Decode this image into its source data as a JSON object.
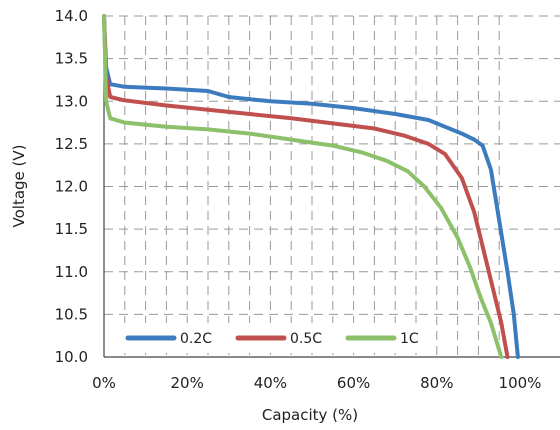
{
  "chart_data": {
    "type": "line",
    "xlabel": "Capacity (%)",
    "ylabel": "Voltage (V)",
    "xlim": [
      0,
      100
    ],
    "ylim": [
      10.0,
      14.0
    ],
    "x_ticks": [
      "0%",
      "20%",
      "40%",
      "60%",
      "80%",
      "100%"
    ],
    "x_tick_values": [
      0,
      20,
      40,
      60,
      80,
      100
    ],
    "y_ticks": [
      "10.0",
      "10.5",
      "11.0",
      "11.5",
      "12.0",
      "12.5",
      "13.0",
      "13.5",
      "14.0"
    ],
    "y_tick_values": [
      10.0,
      10.5,
      11.0,
      11.5,
      12.0,
      12.5,
      13.0,
      13.5,
      14.0
    ],
    "grid": true,
    "legend_position": "bottom-left",
    "series": [
      {
        "name": "0.2C",
        "color": "#3d7bbf",
        "points": [
          [
            0,
            14.0
          ],
          [
            0.5,
            13.4
          ],
          [
            1.5,
            13.2
          ],
          [
            5,
            13.17
          ],
          [
            15,
            13.15
          ],
          [
            25,
            13.12
          ],
          [
            30,
            13.05
          ],
          [
            40,
            13.0
          ],
          [
            50,
            12.97
          ],
          [
            60,
            12.92
          ],
          [
            70,
            12.85
          ],
          [
            78,
            12.78
          ],
          [
            82,
            12.7
          ],
          [
            86,
            12.62
          ],
          [
            89,
            12.55
          ],
          [
            91,
            12.48
          ],
          [
            93,
            12.2
          ],
          [
            95,
            11.6
          ],
          [
            97,
            11.0
          ],
          [
            98.5,
            10.5
          ],
          [
            99.5,
            10.0
          ]
        ]
      },
      {
        "name": "0.5C",
        "color": "#c0504d",
        "points": [
          [
            0,
            14.0
          ],
          [
            0.5,
            13.3
          ],
          [
            1.5,
            13.05
          ],
          [
            5,
            13.01
          ],
          [
            15,
            12.95
          ],
          [
            25,
            12.9
          ],
          [
            35,
            12.85
          ],
          [
            45,
            12.8
          ],
          [
            55,
            12.74
          ],
          [
            65,
            12.68
          ],
          [
            72,
            12.6
          ],
          [
            78,
            12.5
          ],
          [
            82,
            12.38
          ],
          [
            86,
            12.1
          ],
          [
            89,
            11.7
          ],
          [
            91,
            11.3
          ],
          [
            93.5,
            10.8
          ],
          [
            95.5,
            10.4
          ],
          [
            97,
            10.0
          ]
        ]
      },
      {
        "name": "1C",
        "color": "#8dc06a",
        "points": [
          [
            0,
            14.0
          ],
          [
            0.5,
            13.0
          ],
          [
            1.5,
            12.8
          ],
          [
            5,
            12.75
          ],
          [
            15,
            12.7
          ],
          [
            25,
            12.67
          ],
          [
            35,
            12.62
          ],
          [
            45,
            12.55
          ],
          [
            55,
            12.48
          ],
          [
            62,
            12.4
          ],
          [
            68,
            12.3
          ],
          [
            73,
            12.18
          ],
          [
            77,
            12.0
          ],
          [
            81,
            11.75
          ],
          [
            85,
            11.4
          ],
          [
            88,
            11.05
          ],
          [
            90.5,
            10.7
          ],
          [
            93,
            10.4
          ],
          [
            95.5,
            10.0
          ]
        ]
      }
    ]
  }
}
